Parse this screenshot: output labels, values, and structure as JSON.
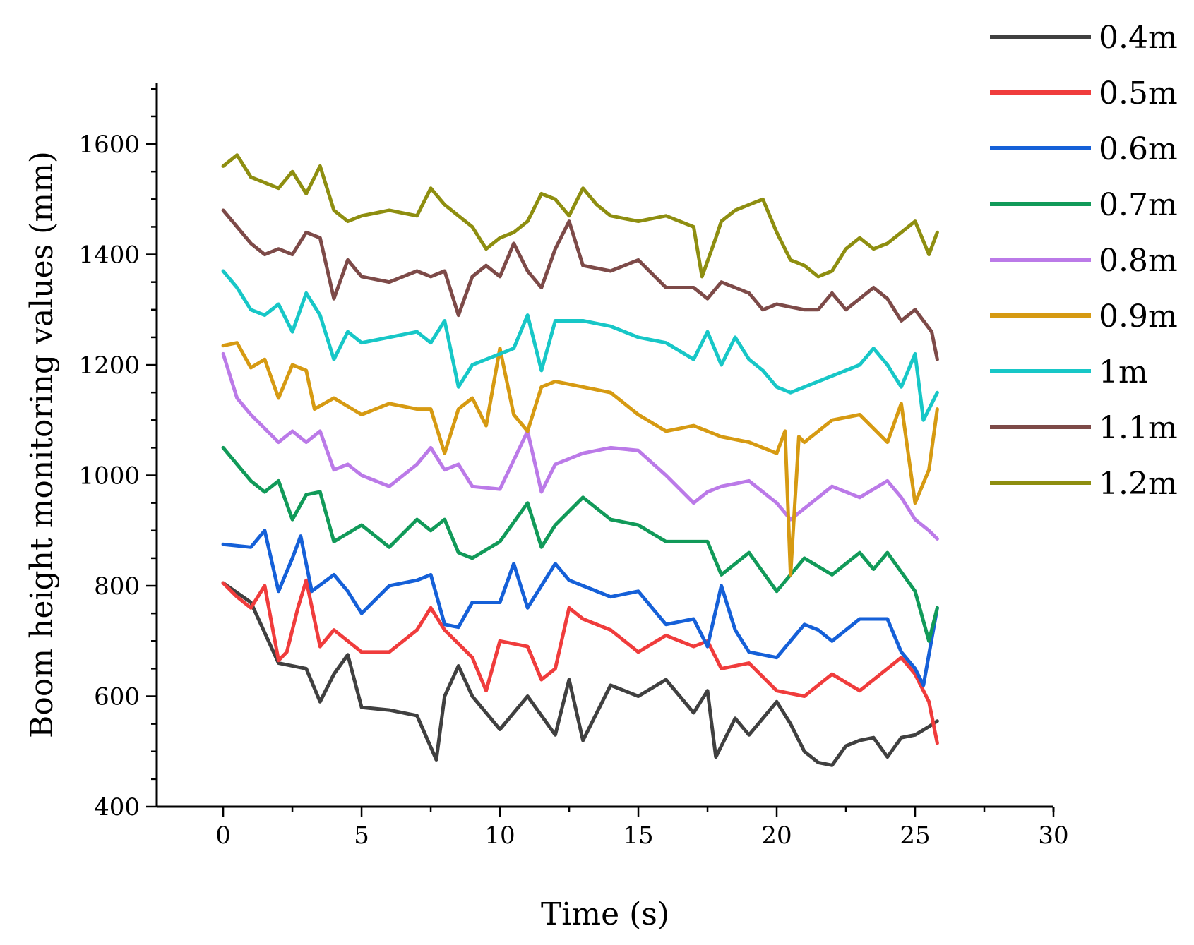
{
  "chart_data": {
    "type": "line",
    "title": "",
    "xlabel": "Time (s)",
    "ylabel": "Boom height monitoring values (mm)",
    "xlim": [
      -2.4,
      30
    ],
    "ylim": [
      400,
      1710
    ],
    "xticks": [
      0,
      5,
      10,
      15,
      20,
      25,
      30
    ],
    "yticks": [
      400,
      600,
      800,
      1000,
      1200,
      1400,
      1600
    ],
    "legend_position": "top-right outside",
    "series": [
      {
        "name": "0.4m",
        "color": "#404040",
        "x": [
          0,
          1,
          2,
          3,
          3.5,
          4,
          4.5,
          5,
          6,
          7,
          7.7,
          8,
          8.5,
          9,
          10,
          11,
          12,
          12.5,
          13,
          14,
          15,
          16,
          17,
          17.5,
          17.8,
          18.5,
          19,
          20,
          20.5,
          21,
          21.5,
          22,
          22.5,
          23,
          23.5,
          24,
          24.5,
          25,
          25.5,
          25.8
        ],
        "values": [
          805,
          770,
          660,
          650,
          590,
          640,
          675,
          580,
          575,
          565,
          485,
          600,
          655,
          600,
          540,
          600,
          530,
          630,
          520,
          620,
          600,
          630,
          570,
          610,
          490,
          560,
          530,
          590,
          550,
          500,
          480,
          475,
          510,
          520,
          525,
          490,
          525,
          530,
          545,
          555
        ]
      },
      {
        "name": "0.5m",
        "color": "#f03c3c",
        "x": [
          0,
          0.5,
          1,
          1.5,
          2,
          2.3,
          2.7,
          3,
          3.5,
          4,
          5,
          6,
          7,
          7.5,
          8,
          9,
          9.5,
          10,
          11,
          11.5,
          12,
          12.5,
          13,
          14,
          15,
          16,
          17,
          17.5,
          18,
          19,
          20,
          21,
          22,
          23,
          24,
          24.5,
          25,
          25.5,
          25.8
        ],
        "values": [
          805,
          780,
          760,
          800,
          665,
          680,
          760,
          810,
          690,
          720,
          680,
          680,
          720,
          760,
          720,
          670,
          610,
          700,
          690,
          630,
          650,
          760,
          740,
          720,
          680,
          710,
          690,
          700,
          650,
          660,
          610,
          600,
          640,
          610,
          650,
          670,
          640,
          590,
          515
        ]
      },
      {
        "name": "0.6m",
        "color": "#1560d8",
        "x": [
          0,
          1,
          1.5,
          2,
          2.5,
          2.8,
          3.2,
          4,
          4.5,
          5,
          6,
          7,
          7.5,
          8,
          8.5,
          9,
          10,
          10.5,
          11,
          12,
          12.5,
          13,
          14,
          15,
          16,
          17,
          17.5,
          18,
          18.5,
          19,
          20,
          21,
          21.5,
          22,
          23,
          24,
          24.5,
          25,
          25.3,
          25.8
        ],
        "values": [
          875,
          870,
          900,
          790,
          850,
          890,
          790,
          820,
          790,
          750,
          800,
          810,
          820,
          730,
          725,
          770,
          770,
          840,
          760,
          840,
          810,
          800,
          780,
          790,
          730,
          740,
          690,
          800,
          720,
          680,
          670,
          730,
          720,
          700,
          740,
          740,
          680,
          650,
          620,
          760
        ]
      },
      {
        "name": "0.7m",
        "color": "#119a59",
        "x": [
          0,
          1,
          1.5,
          2,
          2.5,
          3,
          3.5,
          4,
          5,
          6,
          7,
          7.5,
          8,
          8.5,
          9,
          10,
          11,
          11.5,
          12,
          13,
          14,
          15,
          16,
          17,
          17.5,
          18,
          19,
          20,
          21,
          22,
          23,
          23.5,
          24,
          25,
          25.5,
          25.8
        ],
        "values": [
          1050,
          990,
          970,
          990,
          920,
          965,
          970,
          880,
          910,
          870,
          920,
          900,
          920,
          860,
          850,
          880,
          950,
          870,
          910,
          960,
          920,
          910,
          880,
          880,
          880,
          820,
          860,
          790,
          850,
          820,
          860,
          830,
          860,
          790,
          700,
          760
        ]
      },
      {
        "name": "0.8m",
        "color": "#bb7ae8",
        "x": [
          0,
          0.5,
          1,
          1.5,
          2,
          2.5,
          3,
          3.5,
          4,
          4.5,
          5,
          6,
          7,
          7.5,
          8,
          8.5,
          9,
          10,
          11,
          11.5,
          12,
          13,
          14,
          15,
          16,
          17,
          17.5,
          18,
          19,
          20,
          20.5,
          21,
          22,
          23,
          24,
          24.5,
          25,
          25.5,
          25.8
        ],
        "values": [
          1220,
          1140,
          1110,
          1085,
          1060,
          1080,
          1060,
          1080,
          1010,
          1020,
          1000,
          980,
          1020,
          1050,
          1010,
          1020,
          980,
          975,
          1080,
          970,
          1020,
          1040,
          1050,
          1045,
          1000,
          950,
          970,
          980,
          990,
          950,
          920,
          940,
          980,
          960,
          990,
          960,
          920,
          900,
          885
        ]
      },
      {
        "name": "0.9m",
        "color": "#d69a12",
        "x": [
          0,
          0.5,
          1,
          1.5,
          2,
          2.5,
          3,
          3.3,
          4,
          5,
          6,
          7,
          7.5,
          8,
          8.5,
          9,
          9.5,
          10,
          10.5,
          11,
          11.5,
          12,
          13,
          14,
          15,
          16,
          17,
          18,
          19,
          20,
          20.3,
          20.5,
          20.8,
          21,
          22,
          23,
          24,
          24.5,
          25,
          25.5,
          25.8
        ],
        "values": [
          1235,
          1240,
          1195,
          1210,
          1140,
          1200,
          1190,
          1120,
          1140,
          1110,
          1130,
          1120,
          1120,
          1040,
          1120,
          1140,
          1090,
          1230,
          1110,
          1080,
          1160,
          1170,
          1160,
          1150,
          1110,
          1080,
          1090,
          1070,
          1060,
          1040,
          1080,
          820,
          1070,
          1060,
          1100,
          1110,
          1060,
          1130,
          950,
          1010,
          1120
        ]
      },
      {
        "name": "1m",
        "color": "#17c7c7",
        "x": [
          0,
          0.5,
          1,
          1.5,
          2,
          2.5,
          3,
          3.5,
          4,
          4.5,
          5,
          6,
          7,
          7.5,
          8,
          8.5,
          9,
          10,
          10.5,
          11,
          11.5,
          12,
          13,
          14,
          15,
          16,
          17,
          17.5,
          18,
          18.5,
          19,
          19.5,
          20,
          20.5,
          21,
          22,
          23,
          23.5,
          24,
          24.5,
          25,
          25.3,
          25.8
        ],
        "values": [
          1370,
          1340,
          1300,
          1290,
          1310,
          1260,
          1330,
          1290,
          1210,
          1260,
          1240,
          1250,
          1260,
          1240,
          1280,
          1160,
          1200,
          1220,
          1230,
          1290,
          1190,
          1280,
          1280,
          1270,
          1250,
          1240,
          1210,
          1260,
          1200,
          1250,
          1210,
          1190,
          1160,
          1150,
          1160,
          1180,
          1200,
          1230,
          1200,
          1160,
          1220,
          1100,
          1150
        ]
      },
      {
        "name": "1.1m",
        "color": "#7d4a48",
        "x": [
          0,
          0.5,
          1,
          1.5,
          2,
          2.5,
          3,
          3.5,
          4,
          4.5,
          5,
          6,
          7,
          7.5,
          8,
          8.5,
          9,
          9.5,
          10,
          10.5,
          11,
          11.5,
          12,
          12.5,
          13,
          14,
          15,
          16,
          17,
          17.5,
          18,
          19,
          19.5,
          20,
          21,
          21.5,
          22,
          22.5,
          23,
          23.5,
          24,
          24.5,
          25,
          25.3,
          25.6,
          25.8
        ],
        "values": [
          1480,
          1450,
          1420,
          1400,
          1410,
          1400,
          1440,
          1430,
          1320,
          1390,
          1360,
          1350,
          1370,
          1360,
          1370,
          1290,
          1360,
          1380,
          1360,
          1420,
          1370,
          1340,
          1410,
          1460,
          1380,
          1370,
          1390,
          1340,
          1340,
          1320,
          1350,
          1330,
          1300,
          1310,
          1300,
          1300,
          1330,
          1300,
          1320,
          1340,
          1320,
          1280,
          1300,
          1280,
          1260,
          1210
        ]
      },
      {
        "name": "1.2m",
        "color": "#8e8e10",
        "x": [
          0,
          0.5,
          1,
          1.5,
          2,
          2.5,
          3,
          3.5,
          4,
          4.5,
          5,
          6,
          7,
          7.5,
          8,
          8.5,
          9,
          9.5,
          10,
          10.5,
          11,
          11.5,
          12,
          12.5,
          13,
          13.5,
          14,
          15,
          16,
          17,
          17.3,
          17.8,
          18,
          18.5,
          19,
          19.5,
          20,
          20.5,
          21,
          21.5,
          22,
          22.5,
          23,
          23.5,
          24,
          24.5,
          25,
          25.5,
          25.8
        ],
        "values": [
          1560,
          1580,
          1540,
          1530,
          1520,
          1550,
          1510,
          1560,
          1480,
          1460,
          1470,
          1480,
          1470,
          1520,
          1490,
          1470,
          1450,
          1410,
          1430,
          1440,
          1460,
          1510,
          1500,
          1470,
          1520,
          1490,
          1470,
          1460,
          1470,
          1450,
          1360,
          1430,
          1460,
          1480,
          1490,
          1500,
          1440,
          1390,
          1380,
          1360,
          1370,
          1410,
          1430,
          1410,
          1420,
          1440,
          1460,
          1400,
          1440
        ]
      }
    ]
  }
}
